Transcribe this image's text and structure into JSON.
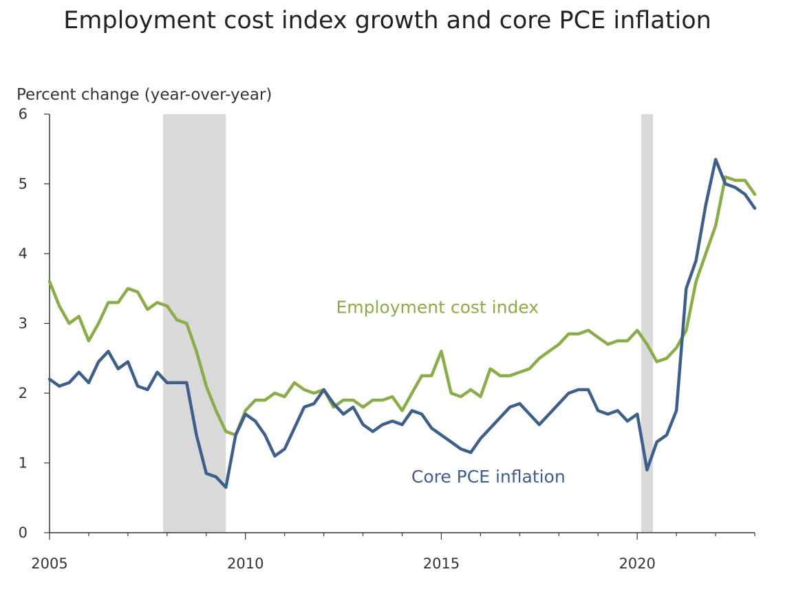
{
  "chart_data": {
    "type": "line",
    "title": "Employment cost index growth and core PCE inflation",
    "xlabel": "",
    "ylabel": "Percent change (year-over-year)",
    "xlim": [
      2005.0,
      2023.0
    ],
    "ylim": [
      0,
      6
    ],
    "x_ticks": [
      2005,
      2010,
      2015,
      2020
    ],
    "y_ticks": [
      0,
      1,
      2,
      3,
      4,
      5,
      6
    ],
    "grid": false,
    "recessions": [
      [
        2007.9,
        2009.5
      ],
      [
        2020.1,
        2020.4
      ]
    ],
    "colors": {
      "eci": "#8aac49",
      "pce": "#3e5f8a",
      "recession": "#d9d9d9"
    },
    "series": [
      {
        "name": "Employment cost index",
        "key": "eci",
        "x": [
          2005.0,
          2005.25,
          2005.5,
          2005.75,
          2006.0,
          2006.25,
          2006.5,
          2006.75,
          2007.0,
          2007.25,
          2007.5,
          2007.75,
          2008.0,
          2008.25,
          2008.5,
          2008.75,
          2009.0,
          2009.25,
          2009.5,
          2009.75,
          2010.0,
          2010.25,
          2010.5,
          2010.75,
          2011.0,
          2011.25,
          2011.5,
          2011.75,
          2012.0,
          2012.25,
          2012.5,
          2012.75,
          2013.0,
          2013.25,
          2013.5,
          2013.75,
          2014.0,
          2014.25,
          2014.5,
          2014.75,
          2015.0,
          2015.25,
          2015.5,
          2015.75,
          2016.0,
          2016.25,
          2016.5,
          2016.75,
          2017.0,
          2017.25,
          2017.5,
          2017.75,
          2018.0,
          2018.25,
          2018.5,
          2018.75,
          2019.0,
          2019.25,
          2019.5,
          2019.75,
          2020.0,
          2020.25,
          2020.5,
          2020.75,
          2021.0,
          2021.25,
          2021.5,
          2021.75,
          2022.0,
          2022.25,
          2022.5,
          2022.75,
          2023.0
        ],
        "values": [
          3.6,
          3.25,
          3.0,
          3.1,
          2.75,
          3.0,
          3.3,
          3.3,
          3.5,
          3.45,
          3.2,
          3.3,
          3.25,
          3.05,
          3.0,
          2.6,
          2.1,
          1.75,
          1.45,
          1.4,
          1.75,
          1.9,
          1.9,
          2.0,
          1.95,
          2.15,
          2.05,
          2.0,
          2.05,
          1.8,
          1.9,
          1.9,
          1.8,
          1.9,
          1.9,
          1.95,
          1.75,
          2.0,
          2.25,
          2.25,
          2.6,
          2.0,
          1.95,
          2.05,
          1.95,
          2.35,
          2.25,
          2.25,
          2.3,
          2.35,
          2.5,
          2.6,
          2.7,
          2.85,
          2.85,
          2.9,
          2.8,
          2.7,
          2.75,
          2.75,
          2.9,
          2.7,
          2.45,
          2.5,
          2.65,
          2.9,
          3.6,
          4.0,
          4.4,
          5.1,
          5.05,
          5.05,
          4.85
        ]
      },
      {
        "name": "Core PCE inflation",
        "key": "pce",
        "x": [
          2005.0,
          2005.25,
          2005.5,
          2005.75,
          2006.0,
          2006.25,
          2006.5,
          2006.75,
          2007.0,
          2007.25,
          2007.5,
          2007.75,
          2008.0,
          2008.25,
          2008.5,
          2008.75,
          2009.0,
          2009.25,
          2009.5,
          2009.75,
          2010.0,
          2010.25,
          2010.5,
          2010.75,
          2011.0,
          2011.25,
          2011.5,
          2011.75,
          2012.0,
          2012.25,
          2012.5,
          2012.75,
          2013.0,
          2013.25,
          2013.5,
          2013.75,
          2014.0,
          2014.25,
          2014.5,
          2014.75,
          2015.0,
          2015.25,
          2015.5,
          2015.75,
          2016.0,
          2016.25,
          2016.5,
          2016.75,
          2017.0,
          2017.25,
          2017.5,
          2017.75,
          2018.0,
          2018.25,
          2018.5,
          2018.75,
          2019.0,
          2019.25,
          2019.5,
          2019.75,
          2020.0,
          2020.25,
          2020.5,
          2020.75,
          2021.0,
          2021.25,
          2021.5,
          2021.75,
          2022.0,
          2022.25,
          2022.5,
          2022.75,
          2023.0
        ],
        "values": [
          2.2,
          2.1,
          2.15,
          2.3,
          2.15,
          2.45,
          2.6,
          2.35,
          2.45,
          2.1,
          2.05,
          2.3,
          2.15,
          2.15,
          2.15,
          1.4,
          0.85,
          0.8,
          0.65,
          1.4,
          1.7,
          1.6,
          1.4,
          1.1,
          1.2,
          1.5,
          1.8,
          1.85,
          2.05,
          1.85,
          1.7,
          1.8,
          1.55,
          1.45,
          1.55,
          1.6,
          1.55,
          1.75,
          1.7,
          1.5,
          1.4,
          1.3,
          1.2,
          1.15,
          1.35,
          1.5,
          1.65,
          1.8,
          1.85,
          1.7,
          1.55,
          1.7,
          1.85,
          2.0,
          2.05,
          2.05,
          1.75,
          1.7,
          1.75,
          1.6,
          1.7,
          0.9,
          1.3,
          1.4,
          1.75,
          3.5,
          3.9,
          4.7,
          5.35,
          5.0,
          4.95,
          4.85,
          4.65
        ]
      }
    ],
    "annotations": [
      {
        "text": "Employment cost index",
        "series": "eci",
        "x": 2014.9,
        "y": 3.15
      },
      {
        "text": "Core PCE inflation",
        "series": "pce",
        "x": 2016.2,
        "y": 0.72
      }
    ]
  }
}
